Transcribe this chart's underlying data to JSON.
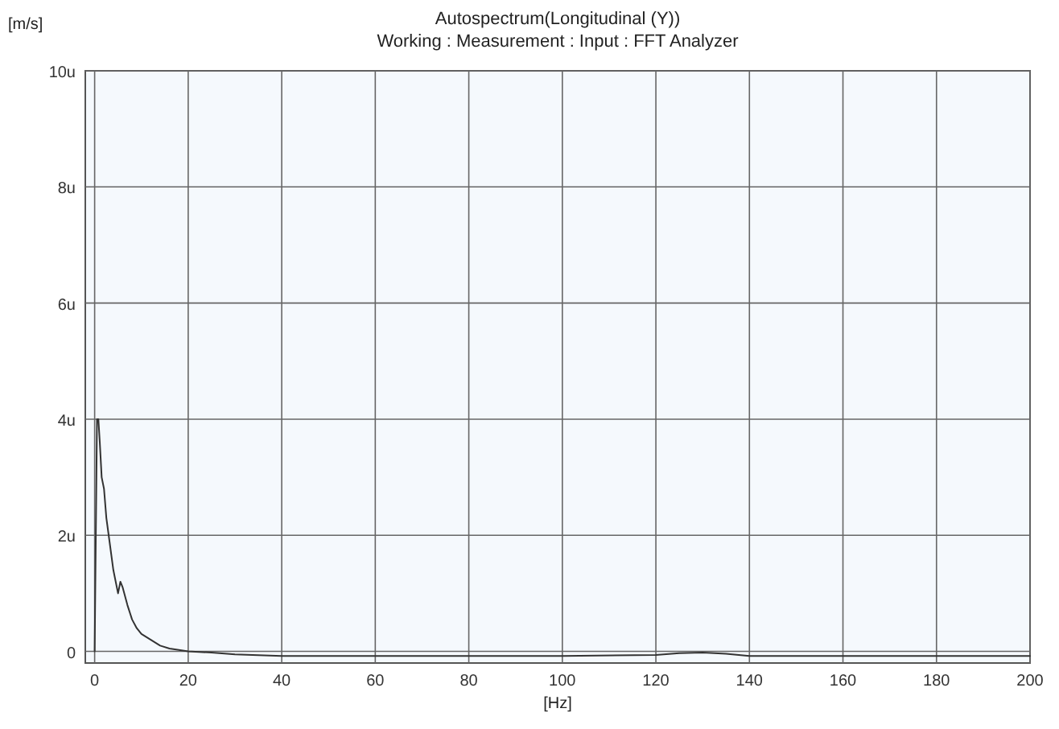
{
  "chart_data": {
    "type": "line",
    "title": "Autospectrum(Longitudinal (Y))",
    "subtitle": "Working : Measurement : Input : FFT Analyzer",
    "xlabel": "[Hz]",
    "ylabel": "[m/s]",
    "x": [
      0,
      0.5,
      0.8,
      1.1,
      1.5,
      2,
      2.5,
      3,
      4,
      5,
      5.5,
      6,
      7,
      8,
      9,
      10,
      12,
      14,
      16,
      20,
      25,
      30,
      40,
      60,
      80,
      100,
      120,
      125,
      130,
      135,
      140,
      160,
      180,
      200
    ],
    "series": [
      {
        "color": "#333333",
        "values": [
          0,
          4,
          4,
          3.6,
          3.0,
          2.8,
          2.3,
          2.0,
          1.4,
          1.0,
          1.2,
          1.1,
          0.8,
          0.55,
          0.4,
          0.3,
          0.2,
          0.1,
          0.05,
          0,
          -0.02,
          -0.05,
          -0.08,
          -0.08,
          -0.08,
          -0.08,
          -0.06,
          -0.03,
          -0.02,
          -0.04,
          -0.08,
          -0.08,
          -0.08,
          -0.08
        ]
      }
    ],
    "xlim": [
      -2,
      200
    ],
    "xticks": [
      0,
      20,
      40,
      60,
      80,
      100,
      120,
      140,
      160,
      180,
      200
    ],
    "ylim": [
      -0.2,
      10
    ],
    "yticks": [
      0,
      {
        "value": 2,
        "label": "2u"
      },
      {
        "value": 4,
        "label": "4u"
      },
      {
        "value": 6,
        "label": "6u"
      },
      {
        "value": 8,
        "label": "8u"
      },
      {
        "value": 10,
        "label": "10u"
      }
    ],
    "grid": true
  }
}
